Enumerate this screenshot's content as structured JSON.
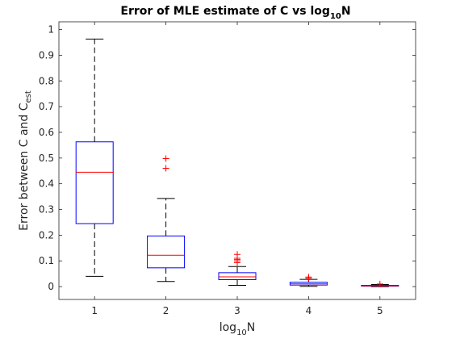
{
  "chart_data": {
    "type": "box",
    "title": {
      "main": "Error of MLE estimate of C vs log",
      "sub": "10",
      "tail": "N"
    },
    "xlabel": {
      "main": "log",
      "sub": "10",
      "tail": "N"
    },
    "ylabel": {
      "main": "Error between C and C",
      "sub": "est"
    },
    "categories": [
      "1",
      "2",
      "3",
      "4",
      "5"
    ],
    "xlim": [
      0.5,
      5.5
    ],
    "ylim": [
      -0.05,
      1.03
    ],
    "yticks": [
      0,
      0.1,
      0.2,
      0.3,
      0.4,
      0.5,
      0.6,
      0.7,
      0.8,
      0.9,
      1
    ],
    "ytick_labels": [
      "0",
      "0.1",
      "0.2",
      "0.3",
      "0.4",
      "0.5",
      "0.6",
      "0.7",
      "0.8",
      "0.9",
      "1"
    ],
    "box_color": "#0000ff",
    "median_color": "#ff0000",
    "whisker_color": "#000000",
    "outlier_color": "#ff0000",
    "grid": false,
    "boxes": [
      {
        "x": 1,
        "whisker_low": 0.04,
        "q1": 0.245,
        "median": 0.445,
        "q3": 0.563,
        "whisker_high": 0.963,
        "outliers": []
      },
      {
        "x": 2,
        "whisker_low": 0.02,
        "q1": 0.073,
        "median": 0.122,
        "q3": 0.197,
        "whisker_high": 0.343,
        "outliers": [
          0.46,
          0.498
        ]
      },
      {
        "x": 3,
        "whisker_low": 0.005,
        "q1": 0.027,
        "median": 0.038,
        "q3": 0.054,
        "whisker_high": 0.078,
        "outliers": [
          0.093,
          0.1,
          0.105,
          0.11,
          0.125
        ]
      },
      {
        "x": 4,
        "whisker_low": 0.001,
        "q1": 0.006,
        "median": 0.011,
        "q3": 0.017,
        "whisker_high": 0.028,
        "outliers": [
          0.033,
          0.037
        ]
      },
      {
        "x": 5,
        "whisker_low": 0.0,
        "q1": 0.002,
        "median": 0.003,
        "q3": 0.005,
        "whisker_high": 0.008,
        "outliers": [
          0.01
        ]
      }
    ]
  }
}
